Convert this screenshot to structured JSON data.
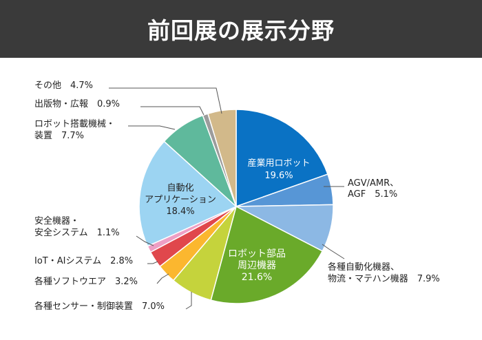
{
  "header": {
    "title": "前回展の展示分野"
  },
  "chart_data": {
    "type": "pie",
    "title": "前回展の展示分野",
    "start": "12 o'clock",
    "direction": "clockwise",
    "slices": [
      {
        "lines": [
          "産業用ロボット",
          "19.6%"
        ],
        "value": 19.6,
        "color": "#0a72c4",
        "label_inside": true,
        "label_color": "#ffffff"
      },
      {
        "lines": [
          "AGV/AMR、",
          "AGF　5.1%"
        ],
        "value": 5.1,
        "color": "#5796d6",
        "label_inside": false
      },
      {
        "lines": [
          "各種自動化機器、",
          "物流・マテハン機器　7.9%"
        ],
        "value": 7.9,
        "color": "#8cb8e4",
        "label_inside": false
      },
      {
        "lines": [
          "ロボット部品",
          "周辺機器",
          "21.6%"
        ],
        "value": 21.6,
        "color": "#6aaa2a",
        "label_inside": true,
        "label_color": "#ffffff"
      },
      {
        "lines": [
          "各種センサー・制御装置　7.0%"
        ],
        "value": 7.0,
        "color": "#c5d33c",
        "label_inside": false
      },
      {
        "lines": [
          "各種ソフトウエア　3.2%"
        ],
        "value": 3.2,
        "color": "#fbb72f",
        "label_inside": false
      },
      {
        "lines": [
          "IoT・AIシステム　2.8%"
        ],
        "value": 2.8,
        "color": "#e0474c",
        "label_inside": false
      },
      {
        "lines": [
          "安全機器・",
          "安全システム　1.1%"
        ],
        "value": 1.1,
        "color": "#ee9fc5",
        "label_inside": false
      },
      {
        "lines": [
          "自動化",
          "アプリケーション",
          "18.4%"
        ],
        "value": 18.4,
        "color": "#9cd4f2",
        "label_inside": true,
        "label_color": "#222222"
      },
      {
        "lines": [
          "ロボット搭載機械・",
          "装置　7.7%"
        ],
        "value": 7.7,
        "color": "#5fb99c",
        "label_inside": false
      },
      {
        "lines": [
          "出版物・広報　0.9%"
        ],
        "value": 0.9,
        "color": "#9c9c9c",
        "label_inside": false
      },
      {
        "lines": [
          "その他　4.7%"
        ],
        "value": 4.7,
        "color": "#d2b98a",
        "label_inside": false
      }
    ]
  }
}
